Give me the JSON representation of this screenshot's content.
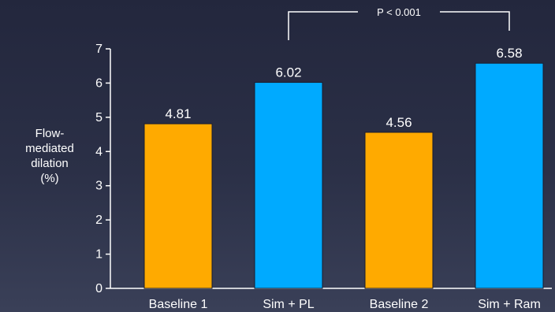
{
  "chart_data": {
    "type": "bar",
    "categories": [
      "Baseline 1",
      "Sim + PL",
      "Baseline 2",
      "Sim + Ram"
    ],
    "values": [
      4.81,
      6.02,
      4.56,
      6.58
    ],
    "data_labels": [
      "4.81",
      "6.02",
      "4.56",
      "6.58"
    ],
    "colors": [
      "#ffaa00",
      "#00aaff",
      "#ffaa00",
      "#00aaff"
    ],
    "title": "",
    "xlabel": "",
    "ylabel_lines": [
      "Flow-",
      "mediated",
      "dilation",
      "(%)"
    ],
    "ylim": [
      0,
      7
    ],
    "yticks": [
      "0",
      "1",
      "2",
      "3",
      "4",
      "5",
      "6",
      "7"
    ],
    "grid": false,
    "annotation": {
      "text": "P < 0.001",
      "from_category": "Sim + PL",
      "to_category": "Sim + Ram"
    }
  }
}
